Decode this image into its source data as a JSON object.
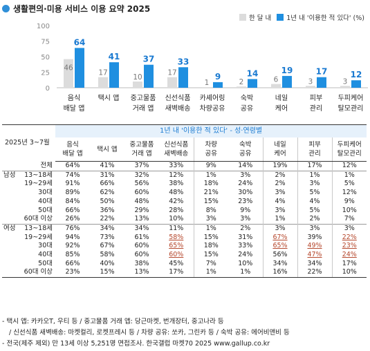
{
  "title": "생활편의·미용 서비스 이용 요약 2025",
  "colors": {
    "accent": "#2f8fd8",
    "bar_once": "#dcdcdc",
    "bar_year": "#1f8fe0",
    "highlight": "#b5472c",
    "banner_bg": "#e6f1fb"
  },
  "chart_data": {
    "type": "bar",
    "categories": [
      "음식\n배달 앱",
      "택시 앱",
      "중고물품\n거래 앱",
      "신선식품\n새벽배송",
      "카셰어링\n차량공유",
      "숙박\n공유",
      "네일\n케어",
      "피부\n관리",
      "두피케어\n탈모관리"
    ],
    "series": [
      {
        "name": "한 달 내",
        "values": [
          46,
          17,
          10,
          17,
          1,
          2,
          6,
          3,
          3
        ]
      },
      {
        "name": "1년 내 '이용한 적 있다' (%)",
        "values": [
          64,
          41,
          37,
          33,
          9,
          14,
          19,
          17,
          12
        ]
      }
    ],
    "yticks": [
      "0",
      "25",
      "50",
      "75",
      "100"
    ],
    "ylim": [
      0,
      100
    ],
    "grid": false
  },
  "table": {
    "period_label": "2025년 3~7월",
    "banner": "1년 내 '이용한 적 있다' - 성·연령별",
    "columns": [
      "음식\n배달 앱",
      "택시 앱",
      "중고물품\n거래 앱",
      "신선식품\n새벽배송",
      "차량\n공유",
      "숙박\n공유",
      "네일\n케어",
      "피부\n관리",
      "두피케어\n탈모관리"
    ],
    "rows": [
      {
        "group": "",
        "label": "전체",
        "values": [
          "64%",
          "41%",
          "37%",
          "33%",
          "9%",
          "14%",
          "19%",
          "17%",
          "12%"
        ],
        "hl": []
      },
      {
        "group": "남성",
        "label": "13~18세",
        "values": [
          "74%",
          "31%",
          "32%",
          "12%",
          "1%",
          "3%",
          "2%",
          "1%",
          "1%"
        ],
        "hl": []
      },
      {
        "group": "",
        "label": "19~29세",
        "values": [
          "91%",
          "66%",
          "56%",
          "38%",
          "18%",
          "24%",
          "2%",
          "3%",
          "5%"
        ],
        "hl": []
      },
      {
        "group": "",
        "label": "30대",
        "values": [
          "89%",
          "62%",
          "60%",
          "48%",
          "21%",
          "30%",
          "3%",
          "5%",
          "12%"
        ],
        "hl": []
      },
      {
        "group": "",
        "label": "40대",
        "values": [
          "84%",
          "50%",
          "48%",
          "42%",
          "15%",
          "23%",
          "4%",
          "4%",
          "9%"
        ],
        "hl": []
      },
      {
        "group": "",
        "label": "50대",
        "values": [
          "66%",
          "36%",
          "29%",
          "28%",
          "8%",
          "9%",
          "3%",
          "5%",
          "10%"
        ],
        "hl": []
      },
      {
        "group": "",
        "label": "60대 이상",
        "values": [
          "26%",
          "22%",
          "13%",
          "10%",
          "3%",
          "3%",
          "1%",
          "2%",
          "7%"
        ],
        "hl": []
      },
      {
        "group": "여성",
        "label": "13~18세",
        "values": [
          "76%",
          "34%",
          "34%",
          "11%",
          "1%",
          "2%",
          "3%",
          "3%",
          "3%"
        ],
        "hl": []
      },
      {
        "group": "",
        "label": "19~29세",
        "values": [
          "94%",
          "73%",
          "61%",
          "58%",
          "15%",
          "31%",
          "67%",
          "39%",
          "22%"
        ],
        "hl": [
          3,
          6,
          8
        ]
      },
      {
        "group": "",
        "label": "30대",
        "values": [
          "92%",
          "67%",
          "60%",
          "65%",
          "18%",
          "33%",
          "65%",
          "49%",
          "23%"
        ],
        "hl": [
          3,
          6,
          7,
          8
        ]
      },
      {
        "group": "",
        "label": "40대",
        "values": [
          "85%",
          "58%",
          "60%",
          "60%",
          "15%",
          "24%",
          "56%",
          "47%",
          "24%"
        ],
        "hl": [
          3,
          7,
          8
        ]
      },
      {
        "group": "",
        "label": "50대",
        "values": [
          "66%",
          "40%",
          "38%",
          "45%",
          "7%",
          "10%",
          "34%",
          "34%",
          "17%"
        ],
        "hl": []
      },
      {
        "group": "",
        "label": "60대 이상",
        "values": [
          "23%",
          "15%",
          "13%",
          "17%",
          "1%",
          "1%",
          "16%",
          "22%",
          "10%"
        ],
        "hl": []
      }
    ]
  },
  "footer": [
    "- 택시 앱: 카카오T, 우티 등 / 중고물품 거래 앱: 당근마켓, 번개장터, 중고나라 등",
    "/ 신선식품 새벽배송: 마켓컬리, 로켓프레시 등 / 차량 공유: 쏘카, 그린카 등 / 숙박 공유: 에어비앤비 등",
    "- 전국(제주 제외) 만 13세 이상 5,251명 면접조사. 한국갤럽 마켓70 2025 www.gallup.co.kr"
  ]
}
